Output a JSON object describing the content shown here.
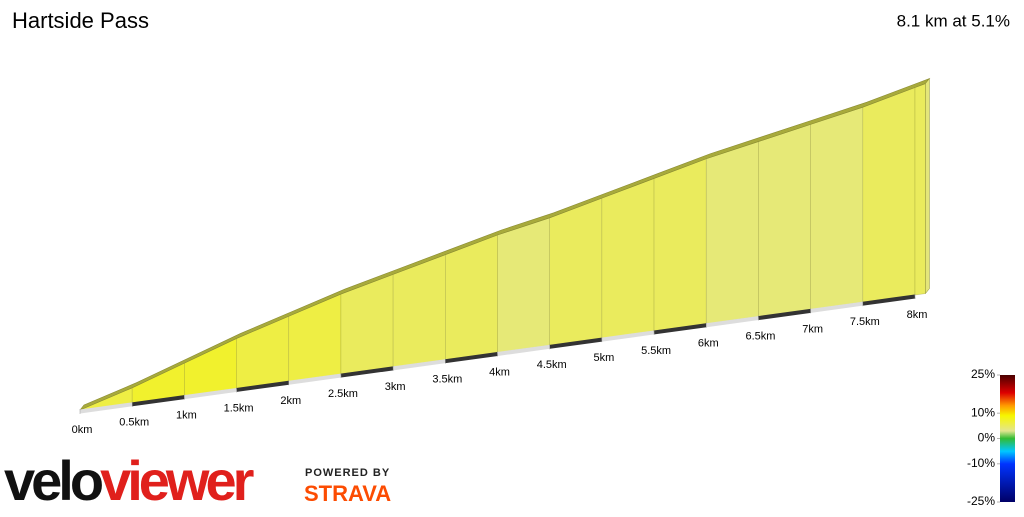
{
  "chart_data": {
    "type": "profile",
    "title": "Hartside Pass",
    "subtitle": "8.1 km at 5.1%",
    "distance_edges": [
      0,
      0.5,
      1,
      1.5,
      2,
      2.5,
      3,
      3.5,
      4,
      4.5,
      5,
      5.5,
      6,
      6.5,
      7,
      7.5,
      8,
      8.1
    ],
    "gradients": [
      6,
      7,
      7,
      6,
      6,
      5,
      5,
      5,
      4,
      5,
      5,
      5,
      4,
      4,
      4,
      5,
      5
    ],
    "xlim": [
      0,
      8
    ],
    "xticks": [
      {
        "value": 0,
        "label": "0km"
      },
      {
        "value": 0.5,
        "label": "0.5km"
      },
      {
        "value": 1,
        "label": "1km"
      },
      {
        "value": 1.5,
        "label": "1.5km"
      },
      {
        "value": 2,
        "label": "2km"
      },
      {
        "value": 2.5,
        "label": "2.5km"
      },
      {
        "value": 3,
        "label": "3km"
      },
      {
        "value": 3.5,
        "label": "3.5km"
      },
      {
        "value": 4,
        "label": "4km"
      },
      {
        "value": 4.5,
        "label": "4.5km"
      },
      {
        "value": 5,
        "label": "5km"
      },
      {
        "value": 5.5,
        "label": "5.5km"
      },
      {
        "value": 6,
        "label": "6km"
      },
      {
        "value": 6.5,
        "label": "6.5km"
      },
      {
        "value": 7,
        "label": "7km"
      },
      {
        "value": 7.5,
        "label": "7.5km"
      },
      {
        "value": 8,
        "label": "8km"
      }
    ],
    "colorbar_lim": [
      -25,
      25
    ],
    "colorbar_ticks": [
      {
        "value": 25,
        "label": "25%"
      },
      {
        "value": 10,
        "label": "10%"
      },
      {
        "value": 0,
        "label": "0%"
      },
      {
        "value": -10,
        "label": "-10%"
      },
      {
        "value": -25,
        "label": "-25%"
      }
    ],
    "colorscale": [
      [
        -25,
        "#000066"
      ],
      [
        -10,
        "#0033ff"
      ],
      [
        -5,
        "#00c8ff"
      ],
      [
        0,
        "#33bb33"
      ],
      [
        3,
        "#e2e690"
      ],
      [
        6,
        "#eeee44"
      ],
      [
        9,
        "#f6f600"
      ],
      [
        13,
        "#ff9900"
      ],
      [
        18,
        "#dd0000"
      ],
      [
        25,
        "#4a0000"
      ]
    ]
  },
  "logo": {
    "part1": "velo",
    "part2": "viewer",
    "powered": "POWERED BY",
    "strava": "STRAVA"
  }
}
